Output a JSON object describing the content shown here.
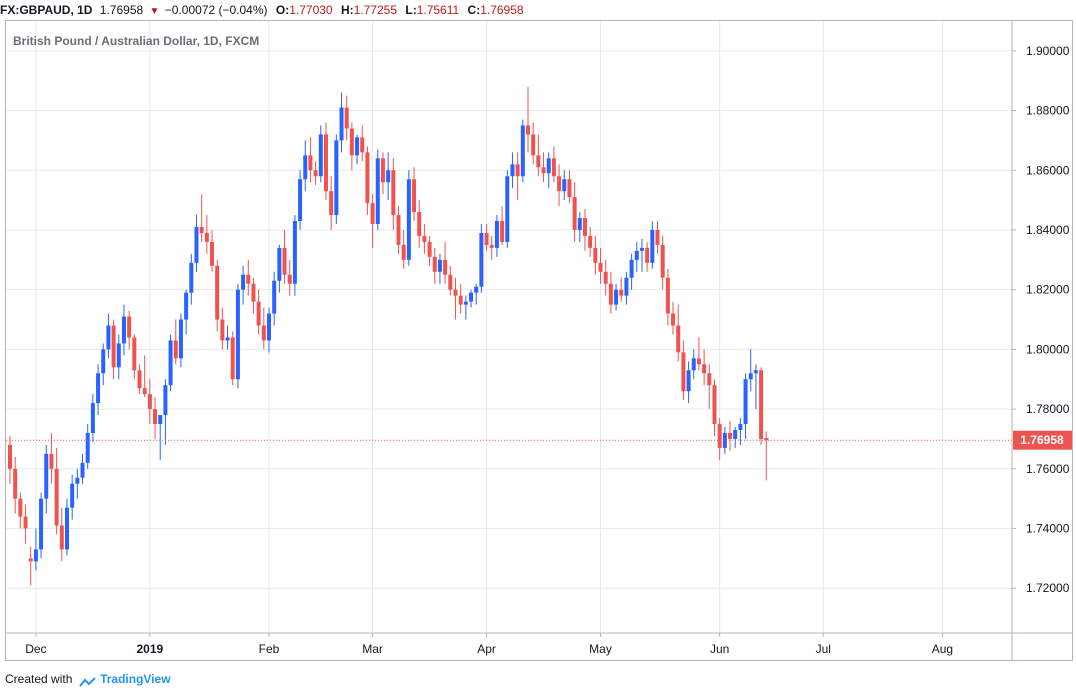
{
  "header": {
    "symbol_res": "FX:GBPAUD, 1D",
    "last": "1.76958",
    "change": "−0.00072 (−0.04%)",
    "open_label": "O:",
    "open": "1.77030",
    "high_label": "H:",
    "high": "1.77255",
    "low_label": "L:",
    "low": "1.75611",
    "close_label": "C:",
    "close": "1.76958"
  },
  "footer": {
    "created_with": "Created with",
    "brand": "TradingView"
  },
  "colors": {
    "up": "#2962ff",
    "down": "#ef5350",
    "grid": "#e6eaee",
    "axis_text": "#131722",
    "price_label_bg": "#ef5350"
  },
  "chart_data": {
    "type": "candlestick",
    "title": "British Pound / Australian Dollar, 1D, FXCM",
    "last_price": 1.76958,
    "last_price_label": "1.76958",
    "ylim": [
      1.705,
      1.91
    ],
    "y_ticks": [
      {
        "value": 1.72,
        "label": "1.72000"
      },
      {
        "value": 1.74,
        "label": "1.74000"
      },
      {
        "value": 1.76,
        "label": "1.76000"
      },
      {
        "value": 1.78,
        "label": "1.78000"
      },
      {
        "value": 1.8,
        "label": "1.80000"
      },
      {
        "value": 1.82,
        "label": "1.82000"
      },
      {
        "value": 1.84,
        "label": "1.84000"
      },
      {
        "value": 1.86,
        "label": "1.86000"
      },
      {
        "value": 1.88,
        "label": "1.88000"
      },
      {
        "value": 1.9,
        "label": "1.90000"
      }
    ],
    "x_ticks": [
      {
        "bar": 5,
        "label": "Dec"
      },
      {
        "bar": 27,
        "label": "2019",
        "bold": true
      },
      {
        "bar": 50,
        "label": "Feb"
      },
      {
        "bar": 70,
        "label": "Mar"
      },
      {
        "bar": 92,
        "label": "Apr"
      },
      {
        "bar": 114,
        "label": "May"
      },
      {
        "bar": 137,
        "label": "Jun"
      },
      {
        "bar": 157,
        "label": "Jul"
      },
      {
        "bar": 180,
        "label": "Aug"
      }
    ],
    "grid": true,
    "candles": [
      [
        1.768,
        1.771,
        1.755,
        1.76
      ],
      [
        1.76,
        1.764,
        1.745,
        1.75
      ],
      [
        1.75,
        1.752,
        1.74,
        1.744
      ],
      [
        1.744,
        1.748,
        1.735,
        1.74
      ],
      [
        1.73,
        1.734,
        1.721,
        1.729
      ],
      [
        1.729,
        1.74,
        1.726,
        1.733
      ],
      [
        1.733,
        1.752,
        1.73,
        1.75
      ],
      [
        1.75,
        1.768,
        1.745,
        1.765
      ],
      [
        1.765,
        1.772,
        1.755,
        1.76
      ],
      [
        1.76,
        1.767,
        1.738,
        1.741
      ],
      [
        1.741,
        1.747,
        1.729,
        1.733
      ],
      [
        1.733,
        1.75,
        1.731,
        1.747
      ],
      [
        1.747,
        1.758,
        1.743,
        1.755
      ],
      [
        1.755,
        1.76,
        1.75,
        1.757
      ],
      [
        1.757,
        1.765,
        1.755,
        1.762
      ],
      [
        1.762,
        1.775,
        1.76,
        1.772
      ],
      [
        1.772,
        1.785,
        1.769,
        1.782
      ],
      [
        1.782,
        1.795,
        1.778,
        1.792
      ],
      [
        1.792,
        1.802,
        1.788,
        1.8
      ],
      [
        1.8,
        1.812,
        1.797,
        1.808
      ],
      [
        1.808,
        1.81,
        1.79,
        1.794
      ],
      [
        1.794,
        1.805,
        1.79,
        1.802
      ],
      [
        1.802,
        1.815,
        1.798,
        1.811
      ],
      [
        1.811,
        1.813,
        1.8,
        1.804
      ],
      [
        1.804,
        1.805,
        1.79,
        1.793
      ],
      [
        1.793,
        1.795,
        1.785,
        1.787
      ],
      [
        1.787,
        1.798,
        1.784,
        1.785
      ],
      [
        1.785,
        1.79,
        1.775,
        1.78
      ],
      [
        1.78,
        1.784,
        1.77,
        1.775
      ],
      [
        1.775,
        1.778,
        1.763,
        1.778
      ],
      [
        1.778,
        1.79,
        1.768,
        1.788
      ],
      [
        1.788,
        1.805,
        1.786,
        1.803
      ],
      [
        1.803,
        1.81,
        1.795,
        1.797
      ],
      [
        1.797,
        1.812,
        1.794,
        1.81
      ],
      [
        1.81,
        1.82,
        1.805,
        1.819
      ],
      [
        1.819,
        1.832,
        1.815,
        1.829
      ],
      [
        1.829,
        1.845,
        1.826,
        1.841
      ],
      [
        1.841,
        1.852,
        1.836,
        1.839
      ],
      [
        1.839,
        1.845,
        1.832,
        1.836
      ],
      [
        1.836,
        1.84,
        1.826,
        1.828
      ],
      [
        1.828,
        1.83,
        1.806,
        1.81
      ],
      [
        1.81,
        1.814,
        1.8,
        1.803
      ],
      [
        1.803,
        1.808,
        1.8,
        1.804
      ],
      [
        1.804,
        1.806,
        1.788,
        1.79
      ],
      [
        1.79,
        1.822,
        1.787,
        1.82
      ],
      [
        1.82,
        1.828,
        1.815,
        1.825
      ],
      [
        1.825,
        1.83,
        1.818,
        1.822
      ],
      [
        1.822,
        1.824,
        1.812,
        1.816
      ],
      [
        1.816,
        1.82,
        1.805,
        1.808
      ],
      [
        1.808,
        1.814,
        1.8,
        1.803
      ],
      [
        1.803,
        1.814,
        1.799,
        1.812
      ],
      [
        1.812,
        1.826,
        1.808,
        1.823
      ],
      [
        1.823,
        1.835,
        1.819,
        1.834
      ],
      [
        1.834,
        1.84,
        1.822,
        1.825
      ],
      [
        1.825,
        1.83,
        1.818,
        1.822
      ],
      [
        1.822,
        1.845,
        1.818,
        1.843
      ],
      [
        1.843,
        1.86,
        1.84,
        1.857
      ],
      [
        1.857,
        1.87,
        1.853,
        1.865
      ],
      [
        1.865,
        1.871,
        1.856,
        1.86
      ],
      [
        1.86,
        1.863,
        1.855,
        1.858
      ],
      [
        1.858,
        1.875,
        1.856,
        1.872
      ],
      [
        1.872,
        1.876,
        1.85,
        1.853
      ],
      [
        1.853,
        1.858,
        1.84,
        1.845
      ],
      [
        1.845,
        1.872,
        1.842,
        1.87
      ],
      [
        1.87,
        1.886,
        1.866,
        1.881
      ],
      [
        1.881,
        1.885,
        1.87,
        1.874
      ],
      [
        1.874,
        1.876,
        1.86,
        1.865
      ],
      [
        1.865,
        1.872,
        1.862,
        1.871
      ],
      [
        1.871,
        1.875,
        1.863,
        1.866
      ],
      [
        1.866,
        1.868,
        1.845,
        1.849
      ],
      [
        1.849,
        1.852,
        1.834,
        1.842
      ],
      [
        1.842,
        1.867,
        1.84,
        1.864
      ],
      [
        1.864,
        1.866,
        1.852,
        1.856
      ],
      [
        1.856,
        1.866,
        1.85,
        1.86
      ],
      [
        1.86,
        1.864,
        1.84,
        1.845
      ],
      [
        1.845,
        1.848,
        1.832,
        1.835
      ],
      [
        1.835,
        1.84,
        1.827,
        1.83
      ],
      [
        1.83,
        1.86,
        1.828,
        1.857
      ],
      [
        1.857,
        1.861,
        1.843,
        1.846
      ],
      [
        1.846,
        1.85,
        1.834,
        1.838
      ],
      [
        1.838,
        1.842,
        1.832,
        1.836
      ],
      [
        1.836,
        1.838,
        1.828,
        1.831
      ],
      [
        1.831,
        1.834,
        1.822,
        1.826
      ],
      [
        1.826,
        1.832,
        1.822,
        1.83
      ],
      [
        1.83,
        1.836,
        1.822,
        1.825
      ],
      [
        1.825,
        1.828,
        1.818,
        1.82
      ],
      [
        1.82,
        1.824,
        1.81,
        1.818
      ],
      [
        1.818,
        1.822,
        1.812,
        1.815
      ],
      [
        1.815,
        1.818,
        1.81,
        1.816
      ],
      [
        1.816,
        1.82,
        1.814,
        1.819
      ],
      [
        1.819,
        1.822,
        1.815,
        1.821
      ],
      [
        1.821,
        1.842,
        1.819,
        1.839
      ],
      [
        1.839,
        1.842,
        1.833,
        1.835
      ],
      [
        1.835,
        1.838,
        1.83,
        1.834
      ],
      [
        1.834,
        1.845,
        1.831,
        1.843
      ],
      [
        1.843,
        1.848,
        1.835,
        1.836
      ],
      [
        1.836,
        1.86,
        1.834,
        1.858
      ],
      [
        1.858,
        1.866,
        1.854,
        1.862
      ],
      [
        1.862,
        1.866,
        1.85,
        1.858
      ],
      [
        1.858,
        1.877,
        1.856,
        1.875
      ],
      [
        1.875,
        1.888,
        1.866,
        1.872
      ],
      [
        1.872,
        1.876,
        1.862,
        1.865
      ],
      [
        1.865,
        1.872,
        1.858,
        1.861
      ],
      [
        1.861,
        1.866,
        1.856,
        1.859
      ],
      [
        1.859,
        1.866,
        1.854,
        1.864
      ],
      [
        1.864,
        1.868,
        1.856,
        1.858
      ],
      [
        1.858,
        1.862,
        1.848,
        1.853
      ],
      [
        1.853,
        1.86,
        1.85,
        1.857
      ],
      [
        1.857,
        1.86,
        1.849,
        1.851
      ],
      [
        1.851,
        1.856,
        1.836,
        1.84
      ],
      [
        1.84,
        1.846,
        1.836,
        1.844
      ],
      [
        1.844,
        1.847,
        1.833,
        1.838
      ],
      [
        1.838,
        1.841,
        1.831,
        1.834
      ],
      [
        1.834,
        1.838,
        1.825,
        1.829
      ],
      [
        1.829,
        1.834,
        1.822,
        1.826
      ],
      [
        1.826,
        1.83,
        1.818,
        1.822
      ],
      [
        1.822,
        1.826,
        1.812,
        1.815
      ],
      [
        1.815,
        1.822,
        1.813,
        1.82
      ],
      [
        1.82,
        1.824,
        1.816,
        1.818
      ],
      [
        1.818,
        1.826,
        1.815,
        1.824
      ],
      [
        1.824,
        1.832,
        1.82,
        1.83
      ],
      [
        1.83,
        1.836,
        1.826,
        1.833
      ],
      [
        1.833,
        1.837,
        1.826,
        1.834
      ],
      [
        1.834,
        1.836,
        1.826,
        1.829
      ],
      [
        1.829,
        1.843,
        1.827,
        1.84
      ],
      [
        1.84,
        1.843,
        1.832,
        1.835
      ],
      [
        1.835,
        1.838,
        1.82,
        1.824
      ],
      [
        1.824,
        1.827,
        1.808,
        1.812
      ],
      [
        1.812,
        1.816,
        1.805,
        1.808
      ],
      [
        1.808,
        1.815,
        1.796,
        1.799
      ],
      [
        1.799,
        1.803,
        1.783,
        1.786
      ],
      [
        1.786,
        1.796,
        1.782,
        1.793
      ],
      [
        1.793,
        1.8,
        1.79,
        1.797
      ],
      [
        1.797,
        1.804,
        1.793,
        1.795
      ],
      [
        1.795,
        1.8,
        1.788,
        1.792
      ],
      [
        1.792,
        1.795,
        1.78,
        1.788
      ],
      [
        1.788,
        1.79,
        1.771,
        1.775
      ],
      [
        1.775,
        1.777,
        1.763,
        1.767
      ],
      [
        1.767,
        1.774,
        1.765,
        1.772
      ],
      [
        1.772,
        1.776,
        1.766,
        1.77
      ],
      [
        1.77,
        1.774,
        1.767,
        1.773
      ],
      [
        1.773,
        1.777,
        1.768,
        1.775
      ],
      [
        1.775,
        1.792,
        1.77,
        1.79
      ],
      [
        1.79,
        1.8,
        1.786,
        1.792
      ],
      [
        1.792,
        1.795,
        1.78,
        1.793
      ],
      [
        1.793,
        1.794,
        1.768,
        1.77
      ],
      [
        1.7703,
        1.77255,
        1.75611,
        1.76958
      ]
    ]
  }
}
